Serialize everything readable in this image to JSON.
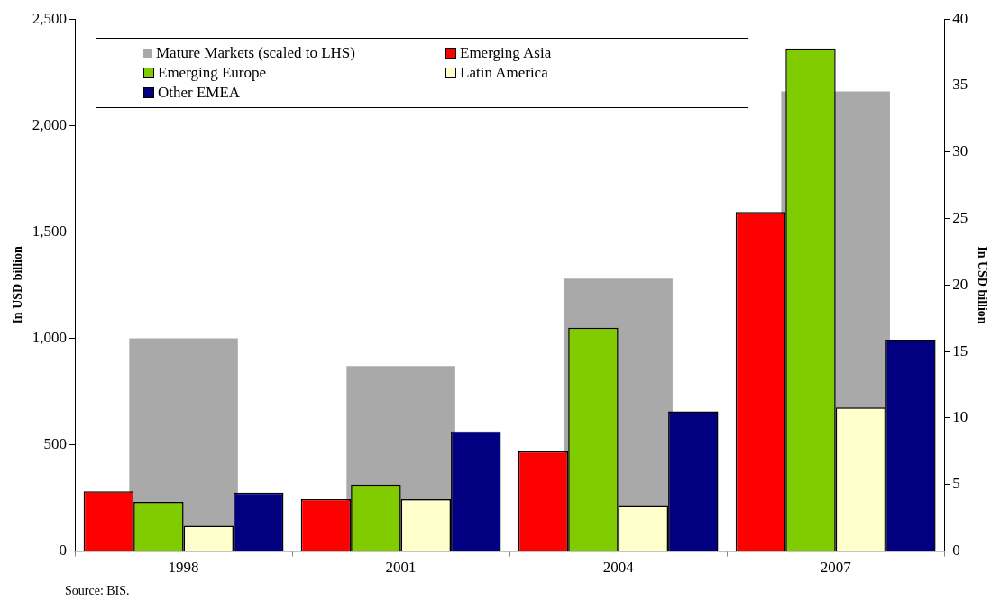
{
  "chart_data": {
    "type": "bar",
    "categories": [
      "1998",
      "2001",
      "2004",
      "2007"
    ],
    "ylabel": "In USD billion",
    "y2label": "In USD billion",
    "ylim": [
      0,
      2500
    ],
    "yticks": [
      0,
      500,
      {
        "value": 1000,
        "label": "1,000"
      },
      {
        "value": 1500,
        "label": "1,500"
      },
      {
        "value": 2000,
        "label": "2,000"
      },
      {
        "value": 2500,
        "label": "2,500"
      }
    ],
    "y2lim": [
      0,
      40
    ],
    "y2ticks": [
      0,
      5,
      10,
      15,
      20,
      25,
      30,
      35,
      40
    ],
    "grid": false,
    "legend": "top left",
    "series": [
      {
        "name": "Mature Markets (scaled to LHS)",
        "color": "#a9a9a9",
        "values": [
          1000,
          870,
          1280,
          2160
        ]
      },
      {
        "name": "Emerging Asia",
        "color": "#ff0000",
        "axis": "y2",
        "values": [
          4.5,
          3.9,
          7.5,
          25.5
        ]
      },
      {
        "name": "Emerging Europe",
        "color": "#80cc00",
        "axis": "y2",
        "values": [
          3.7,
          5.0,
          16.8,
          37.8
        ]
      },
      {
        "name": "Latin America",
        "color": "#ffffcc",
        "axis": "y2",
        "values": [
          1.9,
          3.9,
          3.4,
          10.8
        ]
      },
      {
        "name": "Other EMEA",
        "color": "#000080",
        "axis": "y2",
        "values": [
          4.4,
          9.0,
          10.5,
          15.9
        ]
      }
    ],
    "annotations": [
      "Source: BIS."
    ]
  }
}
